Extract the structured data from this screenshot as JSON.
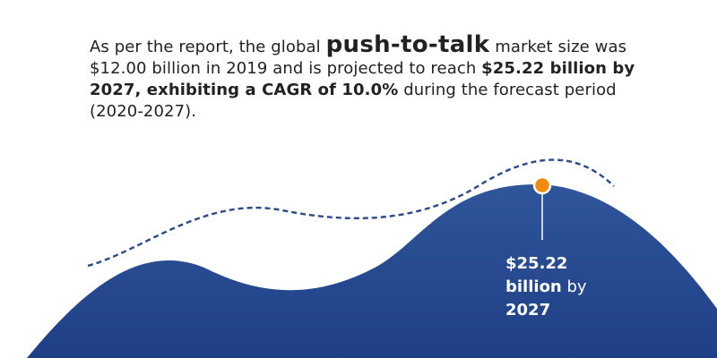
{
  "headline": {
    "part1": "As per the report, the global ",
    "keyword": "push-to-talk",
    "part2": " market size was $12.00 billion in 2019 and is projected to reach ",
    "highlight": "$25.22 billion by 2027, exhibiting a CAGR of 10.0%",
    "part3": " during the forecast period (2020-2027)."
  },
  "callout": {
    "value": "$25.22",
    "unit": "billion",
    "connector": " by",
    "year": "2027"
  },
  "colors": {
    "text": "#222222",
    "wave_fill_top": "#2f559b",
    "wave_fill_bottom": "#1f3f86",
    "dashed_line": "#2a4a8e",
    "marker": "#f28b0c",
    "marker_stroke": "#ffffff"
  }
}
